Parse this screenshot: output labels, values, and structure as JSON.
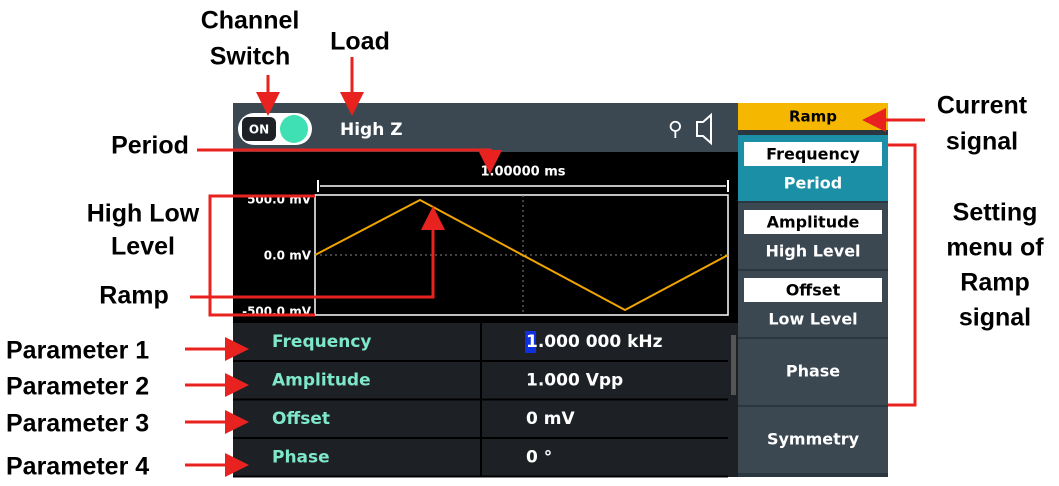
{
  "annotations": {
    "channel_switch": [
      "Channel",
      "Switch"
    ],
    "load": "Load",
    "period": "Period",
    "high_low_level": [
      "High Low",
      "Level"
    ],
    "ramp": "Ramp",
    "parameters": [
      "Parameter 1",
      "Parameter 2",
      "Parameter 3",
      "Parameter 4"
    ],
    "current_signal": [
      "Current",
      "signal"
    ],
    "setting_menu": [
      "Setting",
      "menu of",
      "Ramp",
      "signal"
    ]
  },
  "screen": {
    "switch": "ON",
    "load": "High Z",
    "period_value": "1.00000 ms",
    "y_labels": [
      "500.0 mV",
      "0.0 mV",
      "-500.0 mV"
    ],
    "parameters": [
      [
        "Frequency",
        "1.000 000 kHz"
      ],
      [
        "Amplitude",
        "1.000 Vpp"
      ],
      [
        "Offset",
        "0 mV"
      ],
      [
        "Phase",
        "0 °"
      ]
    ],
    "menu_title": "Ramp",
    "menu": [
      [
        "Frequency",
        "Period"
      ],
      [
        "Amplitude",
        "High Level"
      ],
      [
        "Offset",
        "Low Level"
      ],
      [
        "Phase"
      ],
      [
        "Symmetry"
      ]
    ]
  }
}
